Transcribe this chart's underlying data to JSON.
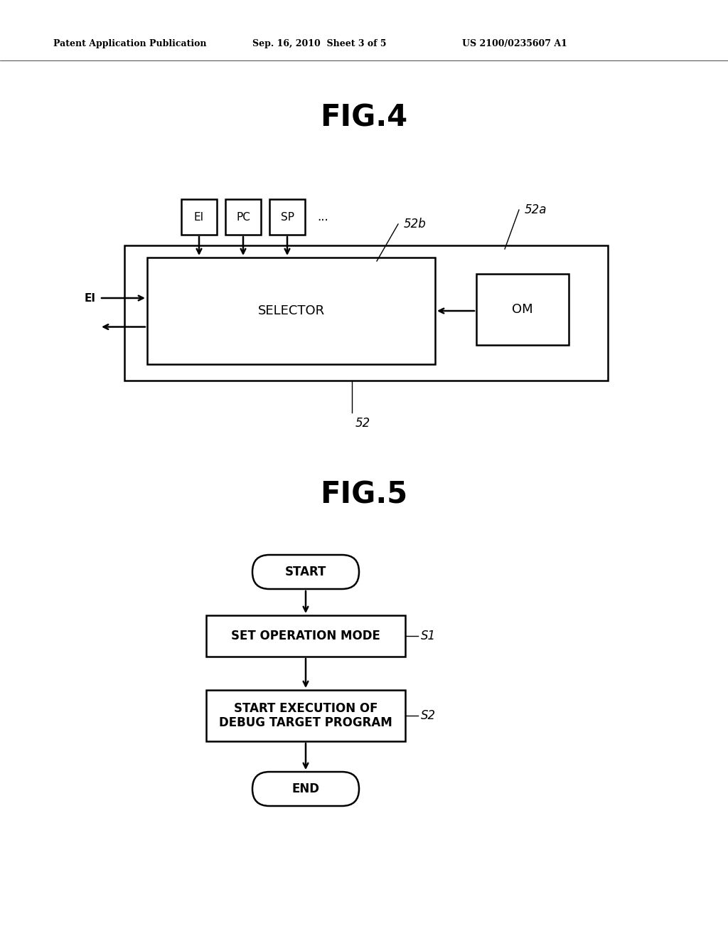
{
  "bg_color": "#ffffff",
  "header_left": "Patent Application Publication",
  "header_mid": "Sep. 16, 2010  Sheet 3 of 5",
  "header_right": "US 2100/0235607 A1",
  "fig4_title": "FIG.4",
  "fig5_title": "FIG.5",
  "fig4": {
    "EI_box": "EI",
    "PC_box": "PC",
    "SP_box": "SP",
    "dots": "...",
    "ref_52b": "52b",
    "ref_52a": "52a",
    "EI_input": "EI",
    "selector": "SELECTOR",
    "OM": "OM",
    "ref_52": "52"
  },
  "fig5": {
    "start": "START",
    "s1_box": "SET OPERATION MODE",
    "s1_ref": "S1",
    "s2_box": "START EXECUTION OF\nDEBUG TARGET PROGRAM",
    "s2_ref": "S2",
    "end": "END"
  }
}
